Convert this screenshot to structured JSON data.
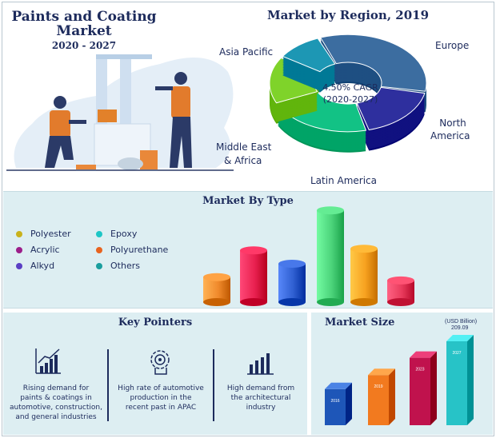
{
  "header": {
    "title_line1": "Paints and Coating",
    "title_line2": "Market",
    "years": "2020 - 2027"
  },
  "region": {
    "title": "Market by Region, 2019",
    "cagr_line1": "4.50% CAGR",
    "cagr_line2": "(2020-2027)",
    "labels": {
      "asia_pacific": "Asia Pacific",
      "europe": "Europe",
      "north_america_1": "North",
      "north_america_2": "America",
      "mea_1": "Middle East",
      "mea_2": "& Africa",
      "latin_america": "Latin America"
    }
  },
  "type_section": {
    "title": "Market By Type",
    "legend": [
      {
        "label": "Polyester",
        "color": "#c9b21c"
      },
      {
        "label": "Acrylic",
        "color": "#9c1e8a"
      },
      {
        "label": "Alkyd",
        "color": "#5a3fc4"
      },
      {
        "label": "Epoxy",
        "color": "#1ec6c6"
      },
      {
        "label": "Polyurethane",
        "color": "#e8631f"
      },
      {
        "label": "Others",
        "color": "#1a9e9e"
      }
    ]
  },
  "key_pointers": {
    "title": "Key Pointers",
    "items": [
      {
        "l1": "Rising demand for",
        "l2": "paints & coatings in",
        "l3": "automotive, construction,",
        "l4": "and general industries",
        "icon": "growth-chart-icon"
      },
      {
        "l1": "High rate of automotive",
        "l2": "production in the",
        "l3": "recent past in APAC",
        "l4": "",
        "icon": "gear-brain-icon"
      },
      {
        "l1": "High demand from",
        "l2": "the architectural",
        "l3": "industry",
        "l4": "",
        "icon": "bar-chart-icon"
      }
    ]
  },
  "market_size": {
    "title": "Market Size",
    "unit": "(USD Billion)",
    "top_value": "209.09"
  },
  "chart_data": [
    {
      "type": "pie",
      "title": "Market by Region, 2019",
      "categories": [
        "Asia Pacific",
        "Europe",
        "North America",
        "Latin America",
        "Middle East & Africa"
      ],
      "values": [
        34,
        18,
        22,
        16,
        10
      ],
      "colors": [
        "#3c6da0",
        "#2e2f9e",
        "#12c285",
        "#7fd32a",
        "#1d97b4"
      ]
    },
    {
      "type": "bar",
      "title": "Market By Type",
      "categories": [
        "Polyester",
        "Acrylic",
        "Alkyd",
        "Epoxy",
        "Polyurethane",
        "Others"
      ],
      "values": [
        30,
        62,
        46,
        110,
        64,
        26
      ],
      "colors": [
        "#f08a2c",
        "#e8204f",
        "#2f5fd1",
        "#4bd37a",
        "#f7a11f",
        "#e83a5b"
      ]
    },
    {
      "type": "bar",
      "title": "Market Size",
      "ylabel": "(USD Billion)",
      "categories": [
        "2016",
        "2019",
        "2023",
        "2027"
      ],
      "values": [
        90,
        125,
        168,
        209.09
      ],
      "data_labels": [
        "",
        "",
        "",
        "209.09"
      ],
      "colors": [
        "#1e56b8",
        "#f27a1f",
        "#c0124d",
        "#27c3c7"
      ]
    }
  ]
}
